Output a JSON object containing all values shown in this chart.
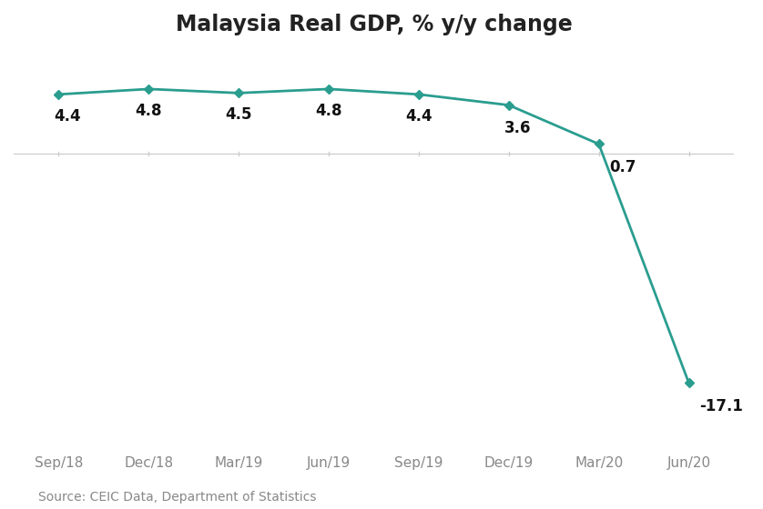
{
  "title": "Malaysia Real GDP, % y/y change",
  "categories": [
    "Sep/18",
    "Dec/18",
    "Mar/19",
    "Jun/19",
    "Sep/19",
    "Dec/19",
    "Mar/20",
    "Jun/20"
  ],
  "values": [
    4.4,
    4.8,
    4.5,
    4.8,
    4.4,
    3.6,
    0.7,
    -17.1
  ],
  "line_color": "#2a9d8f",
  "marker_style": "D",
  "marker_size": 5,
  "line_width": 2.0,
  "source_text": "Source: CEIC Data, Department of Statistics",
  "ylim": [
    -22,
    8
  ],
  "background_color": "#ffffff",
  "title_fontsize": 17,
  "tick_fontsize": 11,
  "source_fontsize": 10,
  "annotation_fontsize": 12,
  "zero_line_color": "#cccccc",
  "tick_color": "#aaaaaa",
  "annotation_color": "#111111",
  "annotation_ha": [
    "left",
    "center",
    "center",
    "center",
    "center",
    "left",
    "left",
    "left"
  ],
  "annotation_dx": [
    -0.05,
    0.0,
    0.0,
    0.0,
    0.0,
    -0.05,
    0.12,
    0.12
  ],
  "annotation_dy": [
    -1.0,
    -1.0,
    -1.0,
    -1.0,
    -1.0,
    -1.1,
    -1.1,
    -1.1
  ]
}
